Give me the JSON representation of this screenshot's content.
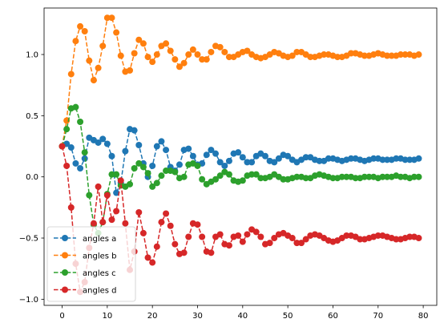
{
  "chart_data": {
    "type": "line",
    "title": "",
    "xlabel": "",
    "ylabel": "",
    "xlim": [
      -4,
      83
    ],
    "ylim": [
      -1.05,
      1.38
    ],
    "xticks": [
      0,
      10,
      20,
      30,
      40,
      50,
      60,
      70,
      80
    ],
    "yticks": [
      -1.0,
      -0.5,
      0.0,
      0.5,
      1.0
    ],
    "xtick_labels": [
      "0",
      "10",
      "20",
      "30",
      "40",
      "50",
      "60",
      "70",
      "80"
    ],
    "ytick_labels": [
      "−1.0",
      "−0.5",
      "0.0",
      "0.5",
      "1.0"
    ],
    "grid": false,
    "legend_position": "lower-left",
    "line_style": "dashed",
    "marker": "circle",
    "x": [
      0,
      1,
      2,
      3,
      4,
      5,
      6,
      7,
      8,
      9,
      10,
      11,
      12,
      13,
      14,
      15,
      16,
      17,
      18,
      19,
      20,
      21,
      22,
      23,
      24,
      25,
      26,
      27,
      28,
      29,
      30,
      31,
      32,
      33,
      34,
      35,
      36,
      37,
      38,
      39,
      40,
      41,
      42,
      43,
      44,
      45,
      46,
      47,
      48,
      49,
      50,
      51,
      52,
      53,
      54,
      55,
      56,
      57,
      58,
      59,
      60,
      61,
      62,
      63,
      64,
      65,
      66,
      67,
      68,
      69,
      70,
      71,
      72,
      73,
      74,
      75,
      76,
      77,
      78,
      79
    ],
    "series": [
      {
        "name": "angles a",
        "color": "#1f77b4",
        "values": [
          0.25,
          0.27,
          0.24,
          0.11,
          0.07,
          0.15,
          0.32,
          0.3,
          0.28,
          0.31,
          0.27,
          0.17,
          -0.13,
          -0.05,
          0.21,
          0.39,
          0.38,
          0.26,
          0.11,
          0.0,
          0.09,
          0.25,
          0.29,
          0.22,
          0.08,
          0.05,
          0.1,
          0.22,
          0.23,
          0.17,
          0.1,
          0.11,
          0.18,
          0.22,
          0.19,
          0.12,
          0.09,
          0.13,
          0.19,
          0.2,
          0.16,
          0.12,
          0.12,
          0.17,
          0.19,
          0.17,
          0.13,
          0.12,
          0.15,
          0.18,
          0.17,
          0.14,
          0.12,
          0.14,
          0.16,
          0.16,
          0.14,
          0.13,
          0.13,
          0.15,
          0.15,
          0.14,
          0.13,
          0.14,
          0.15,
          0.15,
          0.14,
          0.13,
          0.14,
          0.15,
          0.15,
          0.14,
          0.14,
          0.14,
          0.15,
          0.15,
          0.14,
          0.14,
          0.14,
          0.15
        ]
      },
      {
        "name": "angles b",
        "color": "#ff7f0e",
        "values": [
          0.25,
          0.46,
          0.84,
          1.11,
          1.23,
          1.19,
          0.95,
          0.79,
          0.89,
          1.07,
          1.3,
          1.3,
          1.18,
          0.99,
          0.86,
          0.87,
          1.01,
          1.12,
          1.09,
          0.98,
          0.94,
          1.0,
          1.07,
          1.09,
          1.03,
          0.96,
          0.9,
          0.93,
          1.0,
          1.04,
          1.0,
          0.96,
          0.96,
          1.02,
          1.07,
          1.06,
          1.02,
          0.98,
          0.98,
          1.0,
          1.02,
          1.03,
          1.0,
          0.98,
          0.97,
          0.98,
          1.0,
          1.02,
          1.01,
          0.99,
          0.98,
          0.99,
          1.02,
          1.02,
          1.0,
          0.98,
          0.98,
          0.99,
          1.0,
          1.0,
          0.99,
          0.98,
          0.98,
          0.99,
          1.01,
          1.01,
          1.0,
          0.99,
          0.99,
          1.0,
          1.01,
          1.0,
          0.99,
          0.99,
          0.99,
          1.0,
          1.0,
          1.0,
          0.99,
          1.0
        ]
      },
      {
        "name": "angles c",
        "color": "#2ca02c",
        "values": [
          0.25,
          0.39,
          0.56,
          0.57,
          0.45,
          0.2,
          -0.15,
          -0.39,
          -0.46,
          -0.37,
          -0.14,
          0.02,
          0.02,
          -0.07,
          -0.08,
          -0.06,
          0.07,
          0.11,
          0.08,
          0.03,
          -0.08,
          -0.05,
          0.01,
          0.05,
          0.05,
          0.04,
          -0.01,
          0.0,
          0.1,
          0.11,
          0.09,
          -0.02,
          -0.06,
          -0.04,
          -0.02,
          0.01,
          0.04,
          0.02,
          -0.03,
          -0.04,
          -0.03,
          0.01,
          0.02,
          0.02,
          -0.01,
          -0.01,
          0.0,
          0.02,
          0.0,
          -0.02,
          -0.02,
          -0.01,
          0.0,
          0.0,
          -0.01,
          -0.01,
          0.01,
          0.02,
          0.01,
          0.0,
          -0.01,
          -0.01,
          0.0,
          0.0,
          0.0,
          -0.01,
          -0.01,
          0.0,
          0.0,
          0.0,
          -0.01,
          0.0,
          0.0,
          0.0,
          0.01,
          0.0,
          0.0,
          -0.01,
          0.0,
          0.0
        ]
      },
      {
        "name": "angles d",
        "color": "#d62728",
        "values": [
          0.25,
          0.09,
          -0.25,
          -0.71,
          -0.94,
          -0.86,
          -0.58,
          -0.38,
          -0.08,
          -0.37,
          -0.15,
          -0.35,
          -0.28,
          -0.03,
          -0.38,
          -0.76,
          -0.61,
          -0.29,
          -0.46,
          -0.66,
          -0.7,
          -0.57,
          -0.37,
          -0.3,
          -0.4,
          -0.55,
          -0.63,
          -0.62,
          -0.49,
          -0.38,
          -0.39,
          -0.49,
          -0.61,
          -0.62,
          -0.49,
          -0.47,
          -0.55,
          -0.56,
          -0.49,
          -0.48,
          -0.53,
          -0.47,
          -0.43,
          -0.45,
          -0.49,
          -0.55,
          -0.54,
          -0.5,
          -0.47,
          -0.46,
          -0.48,
          -0.5,
          -0.54,
          -0.54,
          -0.51,
          -0.48,
          -0.47,
          -0.48,
          -0.5,
          -0.52,
          -0.53,
          -0.52,
          -0.5,
          -0.48,
          -0.48,
          -0.49,
          -0.51,
          -0.51,
          -0.5,
          -0.49,
          -0.48,
          -0.48,
          -0.49,
          -0.5,
          -0.51,
          -0.51,
          -0.5,
          -0.49,
          -0.49,
          -0.5
        ]
      }
    ]
  }
}
